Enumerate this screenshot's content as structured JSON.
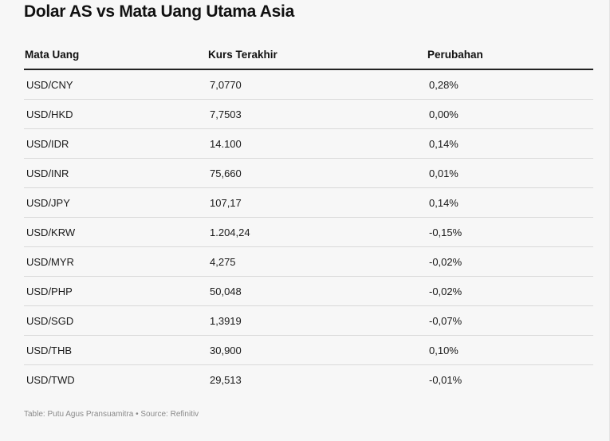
{
  "title": "Dolar AS vs Mata Uang Utama Asia",
  "table": {
    "headers": [
      "Mata Uang",
      "Kurs Terakhir",
      "Perubahan"
    ],
    "rows": [
      [
        "USD/CNY",
        "7,0770",
        "0,28%"
      ],
      [
        "USD/HKD",
        "7,7503",
        "0,00%"
      ],
      [
        "USD/IDR",
        "14.100",
        "0,14%"
      ],
      [
        "USD/INR",
        "75,660",
        "0,01%"
      ],
      [
        "USD/JPY",
        "107,17",
        "0,14%"
      ],
      [
        "USD/KRW",
        "1.204,24",
        "-0,15%"
      ],
      [
        "USD/MYR",
        "4,275",
        "-0,02%"
      ],
      [
        "USD/PHP",
        "50,048",
        "-0,02%"
      ],
      [
        "USD/SGD",
        "1,3919",
        "-0,07%"
      ],
      [
        "USD/THB",
        "30,900",
        "0,10%"
      ],
      [
        "USD/TWD",
        "29,513",
        "-0,01%"
      ]
    ]
  },
  "footer": {
    "source": "Table: Putu Agus Pransuamitra • Source: Refinitiv"
  },
  "colors": {
    "background": "#f7f7f7",
    "text": "#1a1a1a",
    "header_rule": "#222222",
    "row_rule": "#d9d9d9",
    "footnote": "#8a8a8a"
  }
}
